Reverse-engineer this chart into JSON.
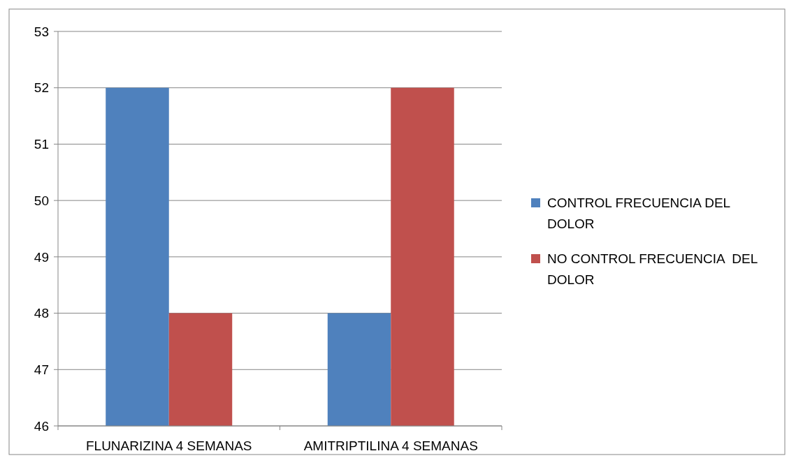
{
  "chart_data": {
    "type": "bar",
    "categories": [
      "FLUNARIZINA 4 SEMANAS",
      "AMITRIPTILINA 4 SEMANAS"
    ],
    "series": [
      {
        "name": "CONTROL FRECUENCIA DEL DOLOR",
        "color": "#4f81bd",
        "values": [
          52,
          48
        ]
      },
      {
        "name": "NO CONTROL FRECUENCIA  DEL DOLOR",
        "color": "#c0504d",
        "values": [
          48,
          52
        ]
      }
    ],
    "ylim": [
      46,
      53
    ],
    "yticks": [
      46,
      47,
      48,
      49,
      50,
      51,
      52,
      53
    ],
    "grid": "y",
    "legend": "right"
  }
}
